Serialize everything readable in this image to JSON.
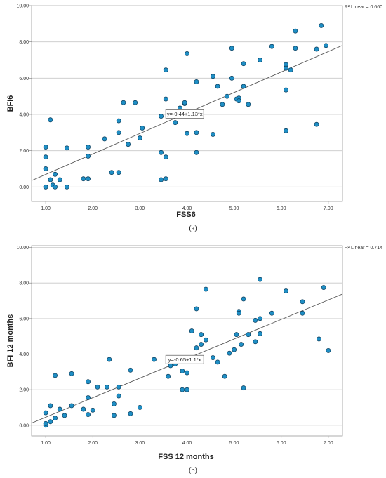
{
  "chart_data": [
    {
      "type": "scatter",
      "xlabel": "FSS6",
      "ylabel": "BFI6",
      "xlim": [
        0.7,
        7.3
      ],
      "ylim": [
        -0.8,
        10.0
      ],
      "x_ticks": [
        "1.00",
        "2.00",
        "3.00",
        "4.00",
        "5.00",
        "6.00",
        "7.00"
      ],
      "y_ticks": [
        "0.00",
        "2.00",
        "4.00",
        "6.00",
        "8.00",
        "10.00"
      ],
      "grid": "horizontal",
      "r2_label": "R² Linear = 0.660",
      "equation_label": "y=-0.44+1.13*x",
      "fit": {
        "intercept": -0.44,
        "slope": 1.13
      },
      "caption": "(a)",
      "points": [
        [
          1.0,
          2.2
        ],
        [
          1.0,
          1.65
        ],
        [
          1.0,
          1.0
        ],
        [
          1.0,
          0.0
        ],
        [
          1.0,
          0.0
        ],
        [
          1.1,
          3.7
        ],
        [
          1.1,
          0.4
        ],
        [
          1.15,
          0.1
        ],
        [
          1.2,
          0.7
        ],
        [
          1.2,
          0.0
        ],
        [
          1.3,
          0.4
        ],
        [
          1.45,
          2.15
        ],
        [
          1.45,
          0.0
        ],
        [
          1.8,
          0.45
        ],
        [
          1.9,
          2.2
        ],
        [
          1.9,
          1.7
        ],
        [
          1.9,
          0.45
        ],
        [
          2.25,
          2.65
        ],
        [
          2.4,
          0.8
        ],
        [
          2.55,
          0.8
        ],
        [
          2.55,
          3.0
        ],
        [
          2.55,
          3.65
        ],
        [
          2.65,
          4.65
        ],
        [
          2.75,
          2.35
        ],
        [
          2.9,
          4.65
        ],
        [
          3.0,
          2.7
        ],
        [
          3.05,
          3.25
        ],
        [
          3.45,
          0.4
        ],
        [
          3.45,
          1.9
        ],
        [
          3.45,
          3.9
        ],
        [
          3.55,
          1.65
        ],
        [
          3.55,
          0.45
        ],
        [
          3.55,
          4.85
        ],
        [
          3.55,
          6.45
        ],
        [
          3.75,
          3.55
        ],
        [
          3.85,
          4.35
        ],
        [
          3.95,
          4.6
        ],
        [
          3.95,
          4.65
        ],
        [
          4.0,
          7.35
        ],
        [
          4.0,
          2.95
        ],
        [
          4.2,
          1.9
        ],
        [
          4.2,
          3.0
        ],
        [
          4.2,
          5.8
        ],
        [
          4.55,
          6.1
        ],
        [
          4.55,
          2.9
        ],
        [
          4.65,
          5.55
        ],
        [
          4.75,
          4.55
        ],
        [
          4.85,
          5.0
        ],
        [
          4.95,
          7.65
        ],
        [
          4.95,
          6.0
        ],
        [
          5.05,
          4.85
        ],
        [
          5.1,
          4.9
        ],
        [
          5.1,
          4.75
        ],
        [
          5.2,
          5.55
        ],
        [
          5.2,
          6.8
        ],
        [
          5.3,
          4.55
        ],
        [
          5.55,
          7.0
        ],
        [
          5.8,
          7.75
        ],
        [
          6.1,
          6.75
        ],
        [
          6.1,
          6.55
        ],
        [
          6.1,
          5.35
        ],
        [
          6.1,
          3.1
        ],
        [
          6.2,
          6.45
        ],
        [
          6.3,
          8.6
        ],
        [
          6.3,
          7.65
        ],
        [
          6.75,
          7.6
        ],
        [
          6.75,
          3.45
        ],
        [
          6.85,
          8.9
        ],
        [
          6.95,
          7.8
        ]
      ]
    },
    {
      "type": "scatter",
      "xlabel": "FSS 12 months",
      "ylabel": "BFI 12 months",
      "xlim": [
        0.7,
        7.3
      ],
      "ylim": [
        -0.6,
        10.1
      ],
      "x_ticks": [
        "1.00",
        "2.00",
        "3.00",
        "4.00",
        "5.00",
        "6.00",
        "7.00"
      ],
      "y_ticks": [
        "0.00",
        "2.00",
        "4.00",
        "6.00",
        "8.00",
        "10.00"
      ],
      "grid": "horizontal",
      "r2_label": "R² Linear = 0.714",
      "equation_label": "y=-0.65+1.1*x",
      "fit": {
        "intercept": -0.65,
        "slope": 1.1
      },
      "caption": "(b)",
      "points": [
        [
          1.0,
          0.7
        ],
        [
          1.0,
          0.0
        ],
        [
          1.0,
          0.1
        ],
        [
          1.1,
          1.1
        ],
        [
          1.1,
          0.2
        ],
        [
          1.2,
          2.8
        ],
        [
          1.2,
          0.4
        ],
        [
          1.3,
          0.9
        ],
        [
          1.4,
          0.55
        ],
        [
          1.55,
          1.1
        ],
        [
          1.55,
          2.9
        ],
        [
          1.8,
          0.9
        ],
        [
          1.9,
          2.45
        ],
        [
          1.9,
          1.55
        ],
        [
          1.9,
          0.6
        ],
        [
          2.0,
          0.85
        ],
        [
          2.1,
          2.15
        ],
        [
          2.3,
          2.15
        ],
        [
          2.35,
          3.7
        ],
        [
          2.45,
          1.2
        ],
        [
          2.45,
          0.55
        ],
        [
          2.55,
          2.15
        ],
        [
          2.55,
          1.65
        ],
        [
          2.8,
          0.65
        ],
        [
          2.8,
          3.1
        ],
        [
          3.0,
          1.0
        ],
        [
          3.3,
          3.7
        ],
        [
          3.6,
          2.75
        ],
        [
          3.65,
          3.35
        ],
        [
          3.75,
          3.45
        ],
        [
          3.9,
          3.05
        ],
        [
          3.9,
          2.0
        ],
        [
          4.0,
          2.95
        ],
        [
          4.0,
          2.0
        ],
        [
          4.1,
          5.3
        ],
        [
          4.2,
          4.35
        ],
        [
          4.2,
          6.55
        ],
        [
          4.3,
          4.55
        ],
        [
          4.3,
          5.1
        ],
        [
          4.4,
          4.8
        ],
        [
          4.4,
          7.65
        ],
        [
          4.55,
          3.8
        ],
        [
          4.65,
          3.55
        ],
        [
          4.8,
          2.75
        ],
        [
          4.9,
          4.05
        ],
        [
          5.0,
          4.25
        ],
        [
          5.05,
          5.1
        ],
        [
          5.1,
          6.4
        ],
        [
          5.1,
          6.3
        ],
        [
          5.15,
          4.55
        ],
        [
          5.2,
          2.1
        ],
        [
          5.2,
          7.1
        ],
        [
          5.3,
          5.1
        ],
        [
          5.45,
          4.7
        ],
        [
          5.45,
          5.9
        ],
        [
          5.55,
          8.2
        ],
        [
          5.55,
          5.15
        ],
        [
          5.55,
          6.0
        ],
        [
          5.8,
          6.3
        ],
        [
          6.1,
          7.55
        ],
        [
          6.45,
          6.95
        ],
        [
          6.45,
          6.3
        ],
        [
          6.8,
          4.85
        ],
        [
          6.9,
          7.75
        ],
        [
          7.0,
          4.2
        ]
      ]
    }
  ]
}
